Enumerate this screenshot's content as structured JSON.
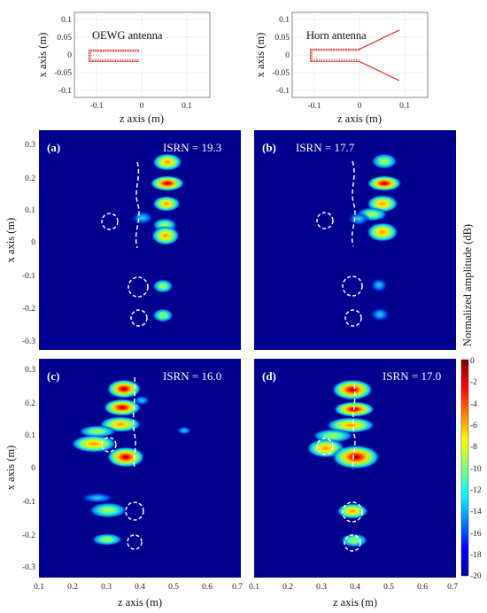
{
  "antenna_panels": [
    {
      "label": "OEWG antenna",
      "xlabel": "z axis (m)",
      "ylabel": "x axis (m)",
      "x_ticks": [
        "-0.1",
        "0",
        "0.1"
      ],
      "y_ticks": [
        "0.1",
        "0.05",
        "0",
        "-0.05",
        "-0.1"
      ],
      "xlim": [
        -0.15,
        0.15
      ],
      "ylim": [
        -0.12,
        0.12
      ]
    },
    {
      "label": "Horn antenna",
      "xlabel": "z axis (m)",
      "ylabel": "x axis (m)",
      "x_ticks": [
        "-0.1",
        "0",
        "0.1"
      ],
      "y_ticks": [
        "0.1",
        "0.05",
        "0",
        "-0.05",
        "-0.1"
      ],
      "xlim": [
        -0.15,
        0.15
      ],
      "ylim": [
        -0.12,
        0.12
      ]
    }
  ],
  "image_panels": [
    {
      "letter": "(a)",
      "isrn": "ISRN = 19.3"
    },
    {
      "letter": "(b)",
      "isrn": "ISRN = 17.7"
    },
    {
      "letter": "(c)",
      "isrn": "ISRN = 16.0"
    },
    {
      "letter": "(d)",
      "isrn": "ISRN = 17.0"
    }
  ],
  "image_axes": {
    "xlabel": "z axis (m)",
    "ylabel": "x axis (m)",
    "x_ticks": [
      "0.1",
      "0.2",
      "0.3",
      "0.4",
      "0.5",
      "0.6",
      "0.7"
    ],
    "y_ticks": [
      "0.3",
      "0.2",
      "0.1",
      "0",
      "-0.1",
      "-0.2",
      "-0.3"
    ],
    "xlim": [
      0.1,
      0.7
    ],
    "ylim": [
      -0.33,
      0.33
    ]
  },
  "colorbar": {
    "label": "Normalized amplitude (dB)",
    "ticks": [
      "0",
      "-2",
      "-4",
      "-6",
      "-8",
      "-10",
      "-12",
      "-14",
      "-16",
      "-18",
      "-20"
    ],
    "range": [
      -20,
      0
    ]
  },
  "colors": {
    "background": "#00008f",
    "antenna_line": "#e02020"
  }
}
